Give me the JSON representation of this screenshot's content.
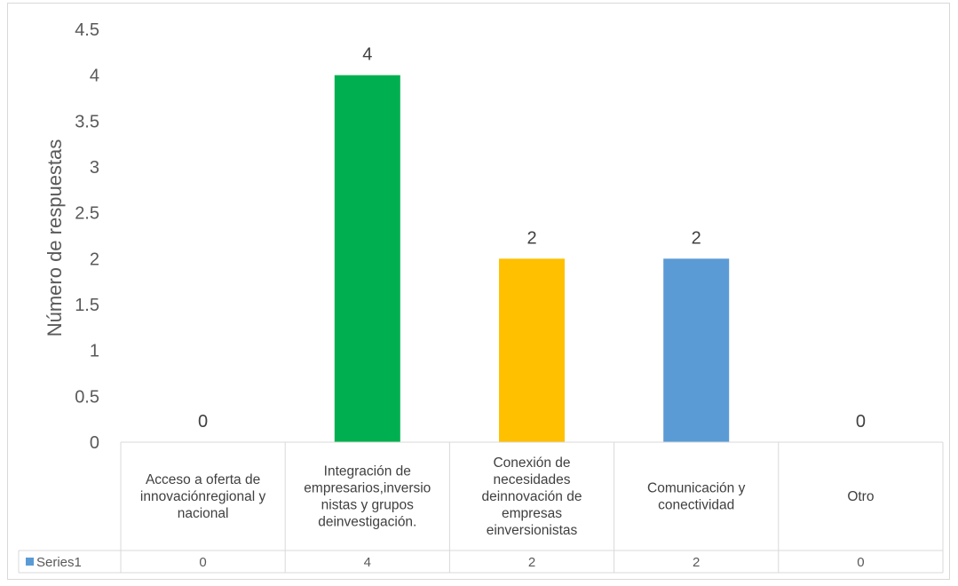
{
  "chart_data": {
    "type": "bar",
    "title": "",
    "ylabel": "Número de respuestas",
    "xlabel": "",
    "ylim": [
      0,
      4.5
    ],
    "yticks": [
      "0",
      "0.5",
      "1",
      "1.5",
      "2",
      "2.5",
      "3",
      "3.5",
      "4",
      "4.5"
    ],
    "grid": false,
    "legend_placement": "data-table-left",
    "categories": [
      [
        "Acceso a oferta de",
        "innovaciónregional y",
        "nacional"
      ],
      [
        "Integración de",
        "empresarios,inversio",
        "nistas y grupos",
        "deinvestigación."
      ],
      [
        "Conexión de",
        "necesidades",
        "deinnovación de",
        "empresas",
        "einversionistas"
      ],
      [
        "Comunicación y",
        "conectividad"
      ],
      [
        "Otro"
      ]
    ],
    "series": [
      {
        "name": "Series1",
        "values": [
          0,
          4,
          2,
          2,
          0
        ],
        "labels": [
          "0",
          "4",
          "2",
          "2",
          "0"
        ],
        "colors": [
          "#70ad47",
          "#00b050",
          "#ffc000",
          "#5b9bd5",
          "#a5a5a5"
        ]
      }
    ],
    "legend_color": "#5b9bd5"
  }
}
